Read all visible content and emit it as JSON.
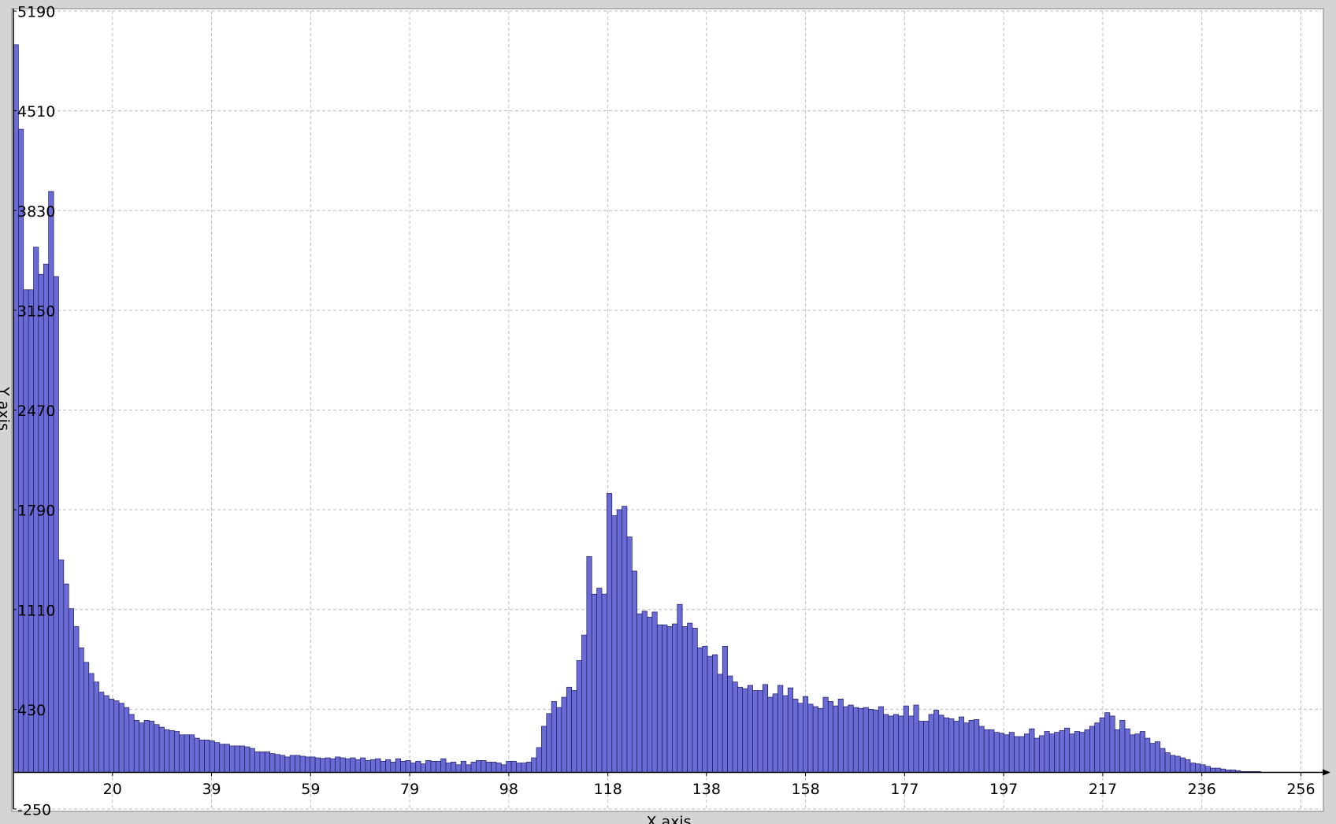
{
  "chart_data": {
    "type": "histogram",
    "xlabel": "X axis",
    "ylabel": "Y axis",
    "bins": [
      0,
      1,
      2,
      3,
      4,
      5,
      6,
      7,
      8,
      9,
      10,
      11,
      12,
      13,
      14,
      15,
      16,
      17,
      18,
      19,
      20,
      21,
      22,
      23,
      24,
      25,
      26,
      27,
      28,
      29,
      30,
      31,
      32,
      33,
      34,
      35,
      36,
      37,
      38,
      39,
      40,
      41,
      42,
      43,
      44,
      45,
      46,
      47,
      48,
      49,
      50,
      51,
      52,
      53,
      54,
      55,
      56,
      57,
      58,
      59,
      60,
      61,
      62,
      63,
      64,
      65,
      66,
      67,
      68,
      69,
      70,
      71,
      72,
      73,
      74,
      75,
      76,
      77,
      78,
      79,
      80,
      81,
      82,
      83,
      84,
      85,
      86,
      87,
      88,
      89,
      90,
      91,
      92,
      93,
      94,
      95,
      96,
      97,
      98,
      99,
      100,
      101,
      102,
      103,
      104,
      105,
      106,
      107,
      108,
      109,
      110,
      111,
      112,
      113,
      114,
      115,
      116,
      117,
      118,
      119,
      120,
      121,
      122,
      123,
      124,
      125,
      126,
      127,
      128,
      129,
      130,
      131,
      132,
      133,
      134,
      135,
      136,
      137,
      138,
      139,
      140,
      141,
      142,
      143,
      144,
      145,
      146,
      147,
      148,
      149,
      150,
      151,
      152,
      153,
      154,
      155,
      156,
      157,
      158,
      159,
      160,
      161,
      162,
      163,
      164,
      165,
      166,
      167,
      168,
      169,
      170,
      171,
      172,
      173,
      174,
      175,
      176,
      177,
      178,
      179,
      180,
      181,
      182,
      183,
      184,
      185,
      186,
      187,
      188,
      189,
      190,
      191,
      192,
      193,
      194,
      195,
      196,
      197,
      198,
      199,
      200,
      201,
      202,
      203,
      204,
      205,
      206,
      207,
      208,
      209,
      210,
      211,
      212,
      213,
      214,
      215,
      216,
      217,
      218,
      219,
      220,
      221,
      222,
      223,
      224,
      225,
      226,
      227,
      228,
      229,
      230,
      231,
      232,
      233,
      234,
      235,
      236,
      237,
      238,
      239,
      240,
      241,
      242,
      243,
      244,
      245,
      246,
      247,
      248,
      249,
      250,
      251,
      252,
      253,
      254,
      255,
      256
    ],
    "values": [
      4960,
      4384,
      3290,
      3290,
      3580,
      3395,
      3465,
      3960,
      3380,
      1448,
      1285,
      1116,
      994,
      849,
      750,
      674,
      616,
      547,
      523,
      500,
      488,
      471,
      442,
      395,
      355,
      337,
      355,
      349,
      326,
      308,
      291,
      285,
      279,
      256,
      256,
      256,
      233,
      221,
      221,
      215,
      203,
      192,
      192,
      180,
      180,
      180,
      174,
      163,
      140,
      140,
      140,
      128,
      122,
      116,
      105,
      116,
      116,
      110,
      105,
      105,
      99,
      95,
      99,
      93,
      105,
      99,
      93,
      99,
      87,
      99,
      81,
      87,
      93,
      76,
      87,
      70,
      93,
      76,
      81,
      64,
      76,
      58,
      81,
      76,
      76,
      93,
      64,
      70,
      52,
      76,
      52,
      70,
      81,
      81,
      70,
      70,
      64,
      52,
      76,
      76,
      64,
      64,
      70,
      99,
      169,
      314,
      401,
      483,
      442,
      512,
      581,
      558,
      762,
      936,
      1471,
      1215,
      1256,
      1215,
      1901,
      1750,
      1791,
      1814,
      1605,
      1372,
      1081,
      1099,
      1058,
      1093,
      1006,
      1006,
      994,
      1012,
      1145,
      994,
      1017,
      983,
      849,
      860,
      791,
      802,
      669,
      860,
      657,
      616,
      581,
      570,
      593,
      558,
      558,
      599,
      512,
      535,
      593,
      523,
      576,
      500,
      471,
      517,
      465,
      448,
      436,
      512,
      483,
      453,
      500,
      448,
      459,
      442,
      436,
      442,
      430,
      424,
      448,
      395,
      384,
      395,
      384,
      453,
      384,
      459,
      349,
      349,
      395,
      424,
      390,
      372,
      366,
      349,
      378,
      337,
      355,
      360,
      314,
      291,
      291,
      273,
      267,
      256,
      273,
      244,
      244,
      262,
      297,
      233,
      250,
      279,
      262,
      273,
      285,
      302,
      262,
      279,
      273,
      291,
      314,
      337,
      372,
      407,
      384,
      291,
      355,
      297,
      256,
      262,
      279,
      233,
      198,
      209,
      163,
      134,
      116,
      110,
      99,
      87,
      64,
      58,
      52,
      41,
      29,
      29,
      23,
      17,
      17,
      12,
      6,
      6,
      6,
      6,
      0,
      0,
      0,
      0,
      0,
      0,
      0,
      0
    ],
    "color": "#6b6bd6",
    "xlim": [
      0,
      260
    ],
    "xticks": [
      {
        "value": 19.7,
        "label": "20"
      },
      {
        "value": 39.4,
        "label": "39"
      },
      {
        "value": 59.1,
        "label": "59"
      },
      {
        "value": 78.8,
        "label": "79"
      },
      {
        "value": 98.5,
        "label": "98"
      },
      {
        "value": 118.2,
        "label": "118"
      },
      {
        "value": 137.8,
        "label": "138"
      },
      {
        "value": 157.5,
        "label": "158"
      },
      {
        "value": 177.2,
        "label": "177"
      },
      {
        "value": 196.9,
        "label": "197"
      },
      {
        "value": 216.6,
        "label": "217"
      },
      {
        "value": 236.3,
        "label": "236"
      },
      256
    ],
    "ylim": [
      -250,
      5190
    ],
    "yticks": [
      -250,
      430,
      1110,
      1790,
      2470,
      3150,
      3830,
      4510,
      5190
    ],
    "grid": true
  }
}
